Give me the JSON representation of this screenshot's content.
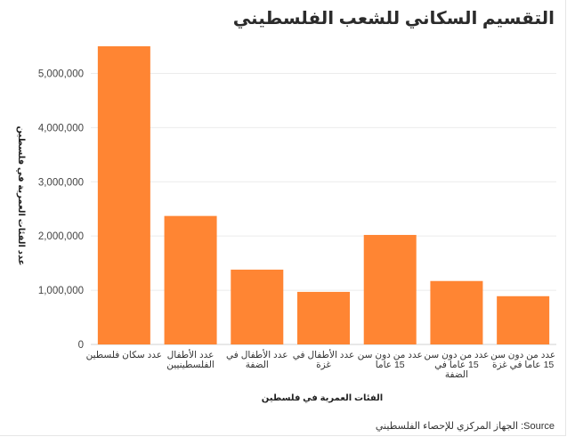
{
  "chart_data": {
    "type": "bar",
    "title": "التقسيم السكاني للشعب الفلسطيني",
    "xlabel": "الفئات العمرية في فلسطين",
    "ylabel": "عدد الفئات العمرية في فلسطين",
    "source": "الجهاز المركزي للإحصاء الفلسطيني :Source",
    "categories": [
      [
        "عدد سكان فلسطين"
      ],
      [
        "عدد الأطفال",
        "الفلسطينيين"
      ],
      [
        "عدد الأطفال في",
        "الضفة"
      ],
      [
        "عدد الأطفال في",
        "غزة"
      ],
      [
        "عدد من دون سن",
        "15 عاما"
      ],
      [
        "عدد من دون سن",
        "15 عاما في",
        "الضفة"
      ],
      [
        "عدد من دون سن",
        "15 عاما في غزة"
      ]
    ],
    "values": [
      5500000,
      2370000,
      1380000,
      970000,
      2020000,
      1170000,
      890000
    ],
    "ylim": [
      0,
      5500000
    ],
    "yticks": [
      "0",
      "1,000,000",
      "2,000,000",
      "3,000,000",
      "4,000,000",
      "5,000,000"
    ],
    "bar_color": "#FF8533",
    "grid": true
  }
}
